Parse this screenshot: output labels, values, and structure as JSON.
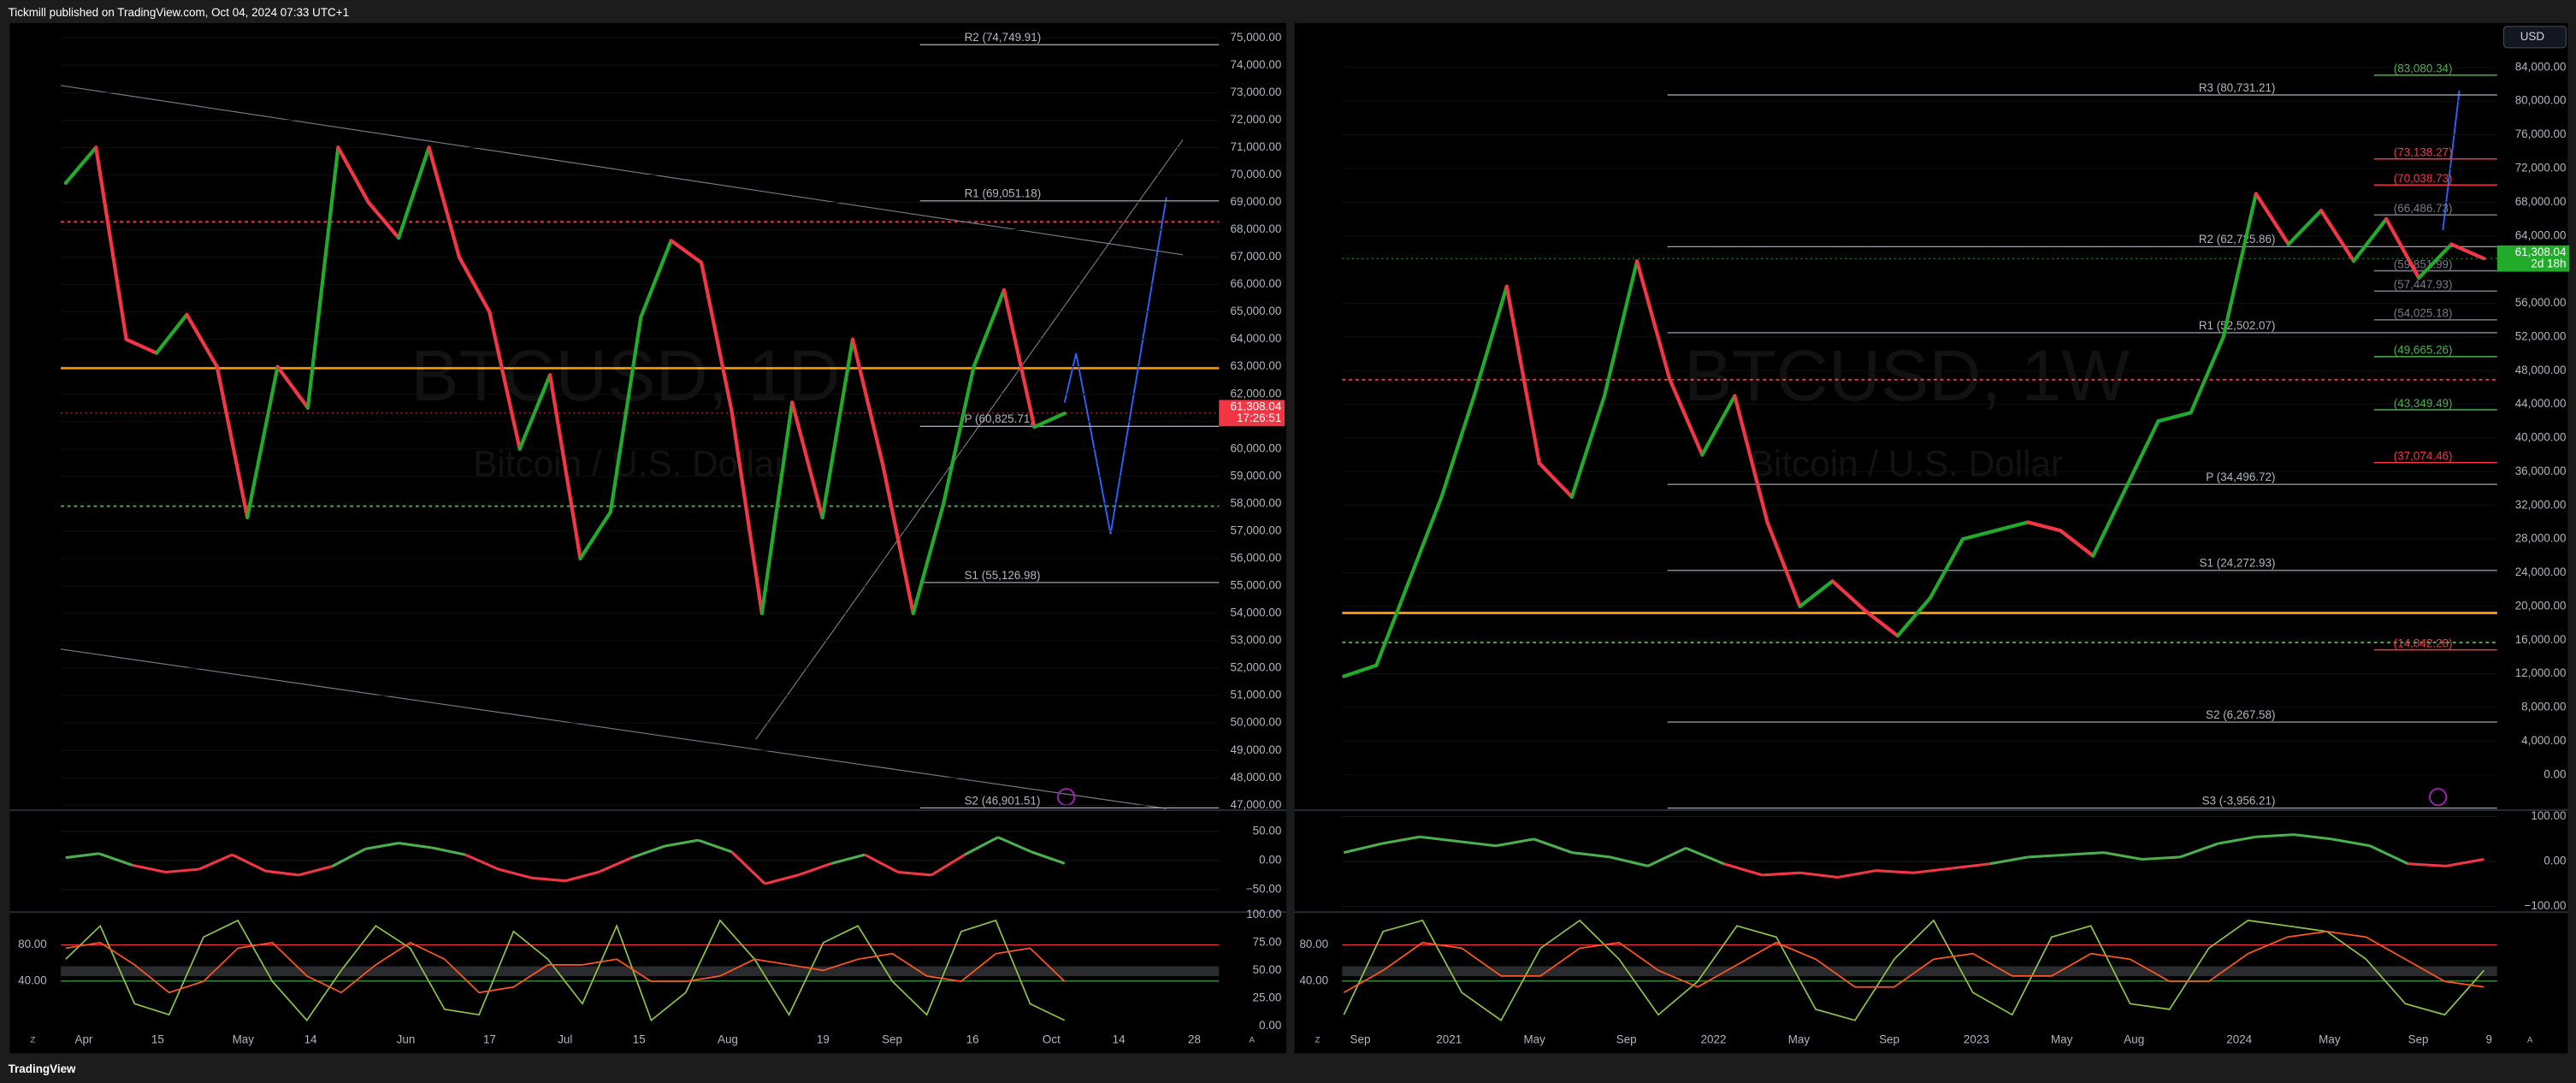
{
  "header": {
    "title": "Tickmill published on TradingView.com, Oct 04, 2024 07:33 UTC+1"
  },
  "footer": {
    "brand": "TradingView"
  },
  "toolbar": {
    "currency": "USD"
  },
  "chart_data": [
    {
      "type": "line",
      "symbol": "BTCUSD, 1D",
      "description": "Bitcoin / U.S. Dollar",
      "values": [
        69700,
        71000,
        64000,
        63500,
        64900,
        63000,
        57500,
        63000,
        61500,
        71000,
        69000,
        67700,
        71000,
        67000,
        65000,
        60000,
        62700,
        56000,
        57700,
        64800,
        67600,
        66800,
        61400,
        54000,
        61700,
        57500,
        64000,
        59400,
        54000,
        58000,
        63000,
        65800,
        60800,
        61300
      ],
      "up_color": "#22ab2a",
      "down_color": "#f23645",
      "ylim": [
        46880,
        75540
      ],
      "yticks": [
        {
          "value": 75000,
          "label": "75,000.00"
        },
        {
          "value": 74000,
          "label": "74,000.00"
        },
        {
          "value": 73000,
          "label": "73,000.00"
        },
        {
          "value": 72000,
          "label": "72,000.00"
        },
        {
          "value": 71000,
          "label": "71,000.00"
        },
        {
          "value": 70000,
          "label": "70,000.00"
        },
        {
          "value": 69000,
          "label": "69,000.00"
        },
        {
          "value": 68000,
          "label": "68,000.00"
        },
        {
          "value": 67000,
          "label": "67,000.00"
        },
        {
          "value": 66000,
          "label": "66,000.00"
        },
        {
          "value": 65000,
          "label": "65,000.00"
        },
        {
          "value": 64000,
          "label": "64,000.00"
        },
        {
          "value": 63000,
          "label": "63,000.00"
        },
        {
          "value": 62000,
          "label": "62,000.00"
        },
        {
          "value": 61000,
          "label": "61,000.00"
        },
        {
          "value": 60000,
          "label": "60,000.00"
        },
        {
          "value": 59000,
          "label": "59,000.00"
        },
        {
          "value": 58000,
          "label": "58,000.00"
        },
        {
          "value": 57000,
          "label": "57,000.00"
        },
        {
          "value": 56000,
          "label": "56,000.00"
        },
        {
          "value": 55000,
          "label": "55,000.00"
        },
        {
          "value": 54000,
          "label": "54,000.00"
        },
        {
          "value": 53000,
          "label": "53,000.00"
        },
        {
          "value": 52000,
          "label": "52,000.00"
        },
        {
          "value": 51000,
          "label": "51,000.00"
        },
        {
          "value": 50000,
          "label": "50,000.00"
        },
        {
          "value": 49000,
          "label": "49,000.00"
        },
        {
          "value": 48000,
          "label": "48,000.00"
        },
        {
          "value": 47000,
          "label": "47,000.00"
        }
      ],
      "last_price": {
        "value": 61308.04,
        "label": "61,308.04",
        "color": "#f23645"
      },
      "countdown": "17:26:51",
      "pivots": [
        {
          "value": 74749.91,
          "label": "R2 (74,749.91)"
        },
        {
          "value": 69051.18,
          "label": "R1 (69,051.18)"
        },
        {
          "value": 60825.71,
          "label": "P (60,825.71)"
        },
        {
          "value": 55126.98,
          "label": "S1 (55,126.98)"
        },
        {
          "value": 46901.51,
          "label": "S2 (46,901.51)"
        }
      ],
      "levels": [],
      "xticks": [
        "Apr",
        "15",
        "May",
        "14",
        "Jun",
        "17",
        "Jul",
        "15",
        "Aug",
        "19",
        "Sep",
        "16",
        "Oct",
        "14",
        "28"
      ],
      "scale_buttons": [
        "Z",
        "A"
      ],
      "oscillator": {
        "ylim": [
          -83,
          81
        ],
        "yticks": [
          {
            "value": 50,
            "label": "50.00"
          },
          {
            "value": 0,
            "label": "0.00"
          },
          {
            "value": -50,
            "label": "−50.00"
          }
        ],
        "values": [
          5,
          12,
          -8,
          -20,
          -15,
          10,
          -18,
          -25,
          -10,
          20,
          30,
          22,
          10,
          -15,
          -30,
          -35,
          -20,
          5,
          25,
          35,
          15,
          -40,
          -25,
          -5,
          10,
          -20,
          -25,
          10,
          40,
          15,
          -5
        ]
      },
      "stochastic": {
        "ylim": [
          -4,
          101
        ],
        "yticks": [
          {
            "value": 100,
            "label": "100.00"
          },
          {
            "value": 75,
            "label": "75.00"
          },
          {
            "value": 50,
            "label": "50.00"
          },
          {
            "value": 25,
            "label": "25.00"
          },
          {
            "value": 0,
            "label": "0.00"
          }
        ],
        "left_ylim": [
          -14.5,
          114.5
        ],
        "left_yticks": [
          {
            "value": 80,
            "label": "80.00"
          },
          {
            "value": 40,
            "label": "40.00"
          }
        ],
        "series": [
          {
            "color": "#8bc34a",
            "values": [
              60,
              90,
              20,
              10,
              80,
              95,
              40,
              5,
              50,
              90,
              70,
              15,
              10,
              85,
              60,
              20,
              90,
              5,
              30,
              95,
              60,
              10,
              75,
              90,
              40,
              10,
              85,
              95,
              20,
              5
            ]
          },
          {
            "color": "#ff5722",
            "values": [
              70,
              75,
              55,
              30,
              40,
              70,
              75,
              45,
              30,
              55,
              75,
              60,
              30,
              35,
              55,
              55,
              60,
              40,
              40,
              45,
              60,
              55,
              50,
              60,
              65,
              45,
              40,
              65,
              70,
              40
            ]
          }
        ]
      }
    },
    {
      "type": "line",
      "symbol": "BTCUSD, 1W",
      "description": "Bitcoin / U.S. Dollar",
      "values": [
        11700,
        13000,
        23000,
        33000,
        45000,
        58000,
        37000,
        33000,
        45000,
        61000,
        47000,
        38000,
        45000,
        30000,
        20000,
        23000,
        19500,
        16500,
        21000,
        28000,
        29000,
        30000,
        29000,
        26000,
        34000,
        42000,
        43000,
        52000,
        69000,
        63000,
        67000,
        61000,
        66000,
        59000,
        63000,
        61300
      ],
      "up_color": "#22ab2a",
      "down_color": "#f23645",
      "ylim": [
        -4000,
        89270
      ],
      "yticks": [
        {
          "value": 84000,
          "label": "84,000.00"
        },
        {
          "value": 80000,
          "label": "80,000.00"
        },
        {
          "value": 76000,
          "label": "76,000.00"
        },
        {
          "value": 72000,
          "label": "72,000.00"
        },
        {
          "value": 68000,
          "label": "68,000.00"
        },
        {
          "value": 64000,
          "label": "64,000.00"
        },
        {
          "value": 56000,
          "label": "56,000.00"
        },
        {
          "value": 52000,
          "label": "52,000.00"
        },
        {
          "value": 48000,
          "label": "48,000.00"
        },
        {
          "value": 44000,
          "label": "44,000.00"
        },
        {
          "value": 40000,
          "label": "40,000.00"
        },
        {
          "value": 36000,
          "label": "36,000.00"
        },
        {
          "value": 32000,
          "label": "32,000.00"
        },
        {
          "value": 28000,
          "label": "28,000.00"
        },
        {
          "value": 24000,
          "label": "24,000.00"
        },
        {
          "value": 20000,
          "label": "20,000.00"
        },
        {
          "value": 16000,
          "label": "16,000.00"
        },
        {
          "value": 12000,
          "label": "12,000.00"
        },
        {
          "value": 8000,
          "label": "8,000.00"
        },
        {
          "value": 4000,
          "label": "4,000.00"
        },
        {
          "value": 0,
          "label": "0.00"
        }
      ],
      "last_price": {
        "value": 61308.04,
        "label": "61,308.04",
        "color": "#22ab2a"
      },
      "countdown": "2d 18h",
      "pivots": [
        {
          "value": 80731.21,
          "label": "R3 (80,731.21)"
        },
        {
          "value": 62725.86,
          "label": "R2 (62,725.86)"
        },
        {
          "value": 52502.07,
          "label": "R1 (52,502.07)"
        },
        {
          "value": 34496.72,
          "label": "P (34,496.72)"
        },
        {
          "value": 24272.93,
          "label": "S1 (24,272.93)"
        },
        {
          "value": 6267.58,
          "label": "S2 (6,267.58)"
        },
        {
          "value": -3956.21,
          "label": "S3 (-3,956.21)"
        }
      ],
      "levels": [
        {
          "value": 83080.34,
          "label": "(83,080.34)",
          "color": "#4caf50"
        },
        {
          "value": 73138.27,
          "label": "(73,138.27)",
          "color": "#f23645"
        },
        {
          "value": 70038.73,
          "label": "(70,038.73)",
          "color": "#f23645"
        },
        {
          "value": 66486.73,
          "label": "(66,486.73)",
          "color": "#787b86"
        },
        {
          "value": 59851.99,
          "label": "(59,851.99)",
          "color": "#787b86"
        },
        {
          "value": 57447.93,
          "label": "(57,447.93)",
          "color": "#787b86"
        },
        {
          "value": 54025.18,
          "label": "(54,025.18)",
          "color": "#787b86"
        },
        {
          "value": 49665.26,
          "label": "(49,665.26)",
          "color": "#4caf50"
        },
        {
          "value": 43349.49,
          "label": "(43,349.49)",
          "color": "#4caf50"
        },
        {
          "value": 37074.46,
          "label": "(37,074.46)",
          "color": "#f23645"
        },
        {
          "value": 14842.28,
          "label": "(14,842.28)",
          "color": "#f23645"
        }
      ],
      "xticks": [
        "Sep",
        "2021",
        "May",
        "Sep",
        "2022",
        "May",
        "Sep",
        "2023",
        "May",
        "Aug",
        "2024",
        "May",
        "Sep",
        "9"
      ],
      "scale_buttons": [
        "Z",
        "A"
      ],
      "oscillator": {
        "ylim": [
          -105,
          107
        ],
        "yticks": [
          {
            "value": 100,
            "label": "100.00"
          },
          {
            "value": 0,
            "label": "0.00"
          },
          {
            "value": -100,
            "label": "−100.00"
          }
        ],
        "values": [
          20,
          40,
          55,
          45,
          35,
          50,
          20,
          10,
          -10,
          30,
          -5,
          -30,
          -25,
          -35,
          -20,
          -25,
          -15,
          -5,
          10,
          15,
          20,
          5,
          10,
          40,
          55,
          60,
          50,
          35,
          -5,
          -10,
          5
        ]
      },
      "stochastic": {
        "ylim": [
          -4,
          101
        ],
        "yticks": [],
        "left_ylim": [
          -14.5,
          114.5
        ],
        "left_yticks": [
          {
            "value": 80,
            "label": "80.00"
          },
          {
            "value": 40,
            "label": "40.00"
          }
        ],
        "series": [
          {
            "color": "#8bc34a",
            "values": [
              10,
              85,
              95,
              30,
              5,
              70,
              95,
              60,
              10,
              40,
              90,
              80,
              15,
              5,
              60,
              95,
              30,
              10,
              80,
              90,
              20,
              15,
              70,
              95,
              90,
              85,
              60,
              20,
              10,
              50
            ]
          },
          {
            "color": "#ff5722",
            "values": [
              30,
              50,
              75,
              70,
              45,
              45,
              70,
              75,
              50,
              35,
              55,
              75,
              60,
              35,
              35,
              60,
              65,
              45,
              45,
              65,
              60,
              40,
              40,
              65,
              80,
              85,
              80,
              60,
              40,
              35
            ]
          }
        ]
      }
    }
  ]
}
